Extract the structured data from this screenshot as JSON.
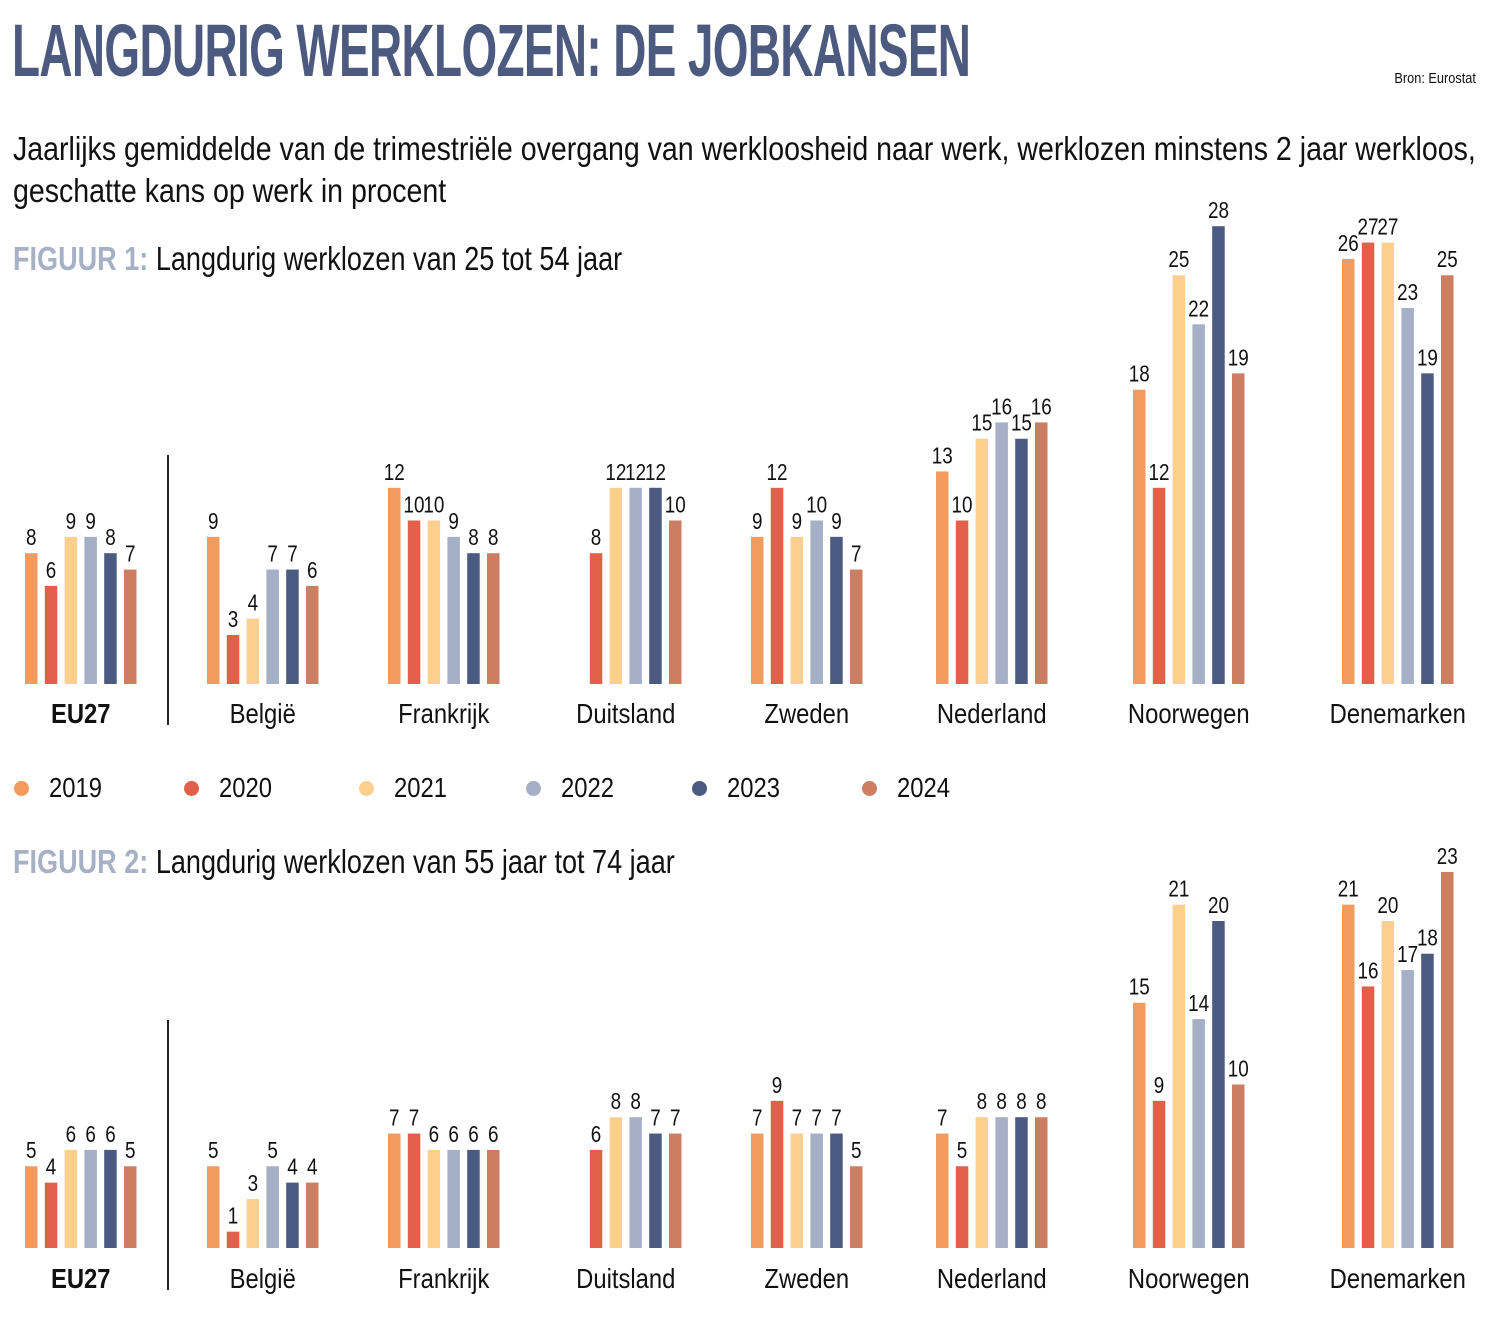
{
  "header": {
    "title": "LANGDURIG WERKLOZEN: DE JOBKANSEN",
    "source": "Bron: Eurostat",
    "subtitle": "Jaarlijks gemiddelde van de trimestriële overgang van werkloosheid naar werk, werklozen minstens 2 jaar werkloos, geschatte kans op werk in procent"
  },
  "figure1": {
    "label": "FIGUUR 1:",
    "title": "Langdurig werklozen van 25 tot 54 jaar"
  },
  "figure2": {
    "label": "FIGUUR 2:",
    "title": "Langdurig werklozen van 55 jaar tot 74 jaar"
  },
  "legend": [
    {
      "label": "2019",
      "color": "#f29b5e"
    },
    {
      "label": "2020",
      "color": "#e2604a"
    },
    {
      "label": "2021",
      "color": "#fccf8e"
    },
    {
      "label": "2022",
      "color": "#a5afc5"
    },
    {
      "label": "2023",
      "color": "#4a5a80"
    },
    {
      "label": "2024",
      "color": "#cd7e62"
    }
  ],
  "chart_data": [
    {
      "type": "bar",
      "title": "FIGUUR 1: Langdurig werklozen van 25 tot 54 jaar",
      "xlabel": "",
      "ylabel": "Geschatte kans op werk (%)",
      "ylim": [
        0,
        28
      ],
      "grid": false,
      "legend_position": "bottom-left",
      "categories": [
        "EU27",
        "België",
        "Frankrijk",
        "Duitsland",
        "Zweden",
        "Nederland",
        "Noorwegen",
        "Denemarken"
      ],
      "bold_categories": [
        "EU27"
      ],
      "series": [
        {
          "name": "2019",
          "values": [
            8,
            9,
            12,
            null,
            9,
            13,
            18,
            26
          ]
        },
        {
          "name": "2020",
          "values": [
            6,
            3,
            10,
            8,
            12,
            10,
            12,
            27
          ]
        },
        {
          "name": "2021",
          "values": [
            9,
            4,
            10,
            12,
            9,
            15,
            25,
            27
          ]
        },
        {
          "name": "2022",
          "values": [
            9,
            7,
            9,
            12,
            10,
            16,
            22,
            23
          ]
        },
        {
          "name": "2023",
          "values": [
            8,
            7,
            8,
            12,
            9,
            15,
            28,
            19
          ]
        },
        {
          "name": "2024",
          "values": [
            7,
            6,
            8,
            10,
            7,
            16,
            19,
            25
          ]
        }
      ]
    },
    {
      "type": "bar",
      "title": "FIGUUR 2: Langdurig werklozen van 55 jaar tot 74 jaar",
      "xlabel": "",
      "ylabel": "Geschatte kans op werk (%)",
      "ylim": [
        0,
        23
      ],
      "grid": false,
      "legend_position": "none",
      "categories": [
        "EU27",
        "België",
        "Frankrijk",
        "Duitsland",
        "Zweden",
        "Nederland",
        "Noorwegen",
        "Denemarken"
      ],
      "bold_categories": [
        "EU27"
      ],
      "series": [
        {
          "name": "2019",
          "values": [
            5,
            5,
            7,
            null,
            7,
            7,
            15,
            21
          ]
        },
        {
          "name": "2020",
          "values": [
            4,
            1,
            7,
            6,
            9,
            5,
            9,
            16
          ]
        },
        {
          "name": "2021",
          "values": [
            6,
            3,
            6,
            8,
            7,
            8,
            21,
            20
          ]
        },
        {
          "name": "2022",
          "values": [
            6,
            5,
            6,
            8,
            7,
            8,
            14,
            17
          ]
        },
        {
          "name": "2023",
          "values": [
            6,
            4,
            6,
            7,
            7,
            8,
            20,
            18
          ]
        },
        {
          "name": "2024",
          "values": [
            5,
            4,
            6,
            7,
            5,
            8,
            10,
            23
          ]
        }
      ]
    }
  ]
}
